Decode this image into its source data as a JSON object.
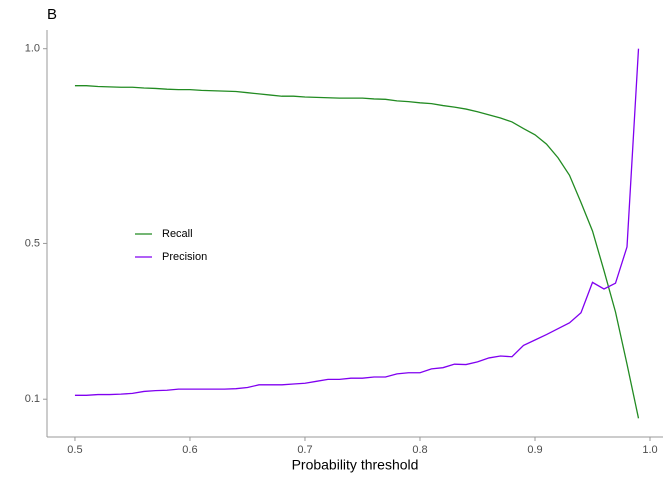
{
  "chart_data": {
    "type": "line",
    "title": "B",
    "xlabel": "Probability threshold",
    "x": [
      0.5,
      0.51,
      0.52,
      0.53,
      0.54,
      0.55,
      0.56,
      0.57,
      0.58,
      0.59,
      0.6,
      0.61,
      0.62,
      0.63,
      0.64,
      0.65,
      0.66,
      0.67,
      0.68,
      0.69,
      0.7,
      0.71,
      0.72,
      0.73,
      0.74,
      0.75,
      0.76,
      0.77,
      0.78,
      0.79,
      0.8,
      0.81,
      0.82,
      0.83,
      0.84,
      0.85,
      0.86,
      0.87,
      0.88,
      0.89,
      0.9,
      0.91,
      0.92,
      0.93,
      0.94,
      0.95,
      0.96,
      0.97,
      0.98,
      0.99
    ],
    "series": [
      {
        "name": "Recall",
        "color": "#228b22",
        "values": [
          0.905,
          0.905,
          0.903,
          0.902,
          0.901,
          0.901,
          0.899,
          0.898,
          0.896,
          0.895,
          0.895,
          0.893,
          0.892,
          0.891,
          0.89,
          0.887,
          0.884,
          0.881,
          0.878,
          0.878,
          0.876,
          0.875,
          0.874,
          0.873,
          0.873,
          0.873,
          0.871,
          0.87,
          0.866,
          0.864,
          0.861,
          0.859,
          0.854,
          0.85,
          0.845,
          0.838,
          0.83,
          0.822,
          0.812,
          0.795,
          0.779,
          0.755,
          0.72,
          0.675,
          0.605,
          0.532,
          0.43,
          0.324,
          0.19,
          0.051
        ]
      },
      {
        "name": "Precision",
        "color": "#8000f0",
        "values": [
          0.11,
          0.11,
          0.112,
          0.112,
          0.113,
          0.115,
          0.12,
          0.122,
          0.123,
          0.126,
          0.126,
          0.126,
          0.126,
          0.126,
          0.127,
          0.13,
          0.137,
          0.137,
          0.137,
          0.139,
          0.141,
          0.146,
          0.151,
          0.151,
          0.154,
          0.154,
          0.157,
          0.157,
          0.165,
          0.168,
          0.168,
          0.178,
          0.181,
          0.19,
          0.189,
          0.196,
          0.206,
          0.211,
          0.209,
          0.238,
          0.252,
          0.266,
          0.281,
          0.296,
          0.322,
          0.4,
          0.383,
          0.398,
          0.491,
          1.0
        ]
      }
    ],
    "xlim": [
      0.4757,
      1.0113
    ],
    "xticks": [
      0.5,
      0.6,
      0.7,
      0.8,
      0.9,
      {
        "value": 1,
        "label": "1.0"
      }
    ],
    "ylim": [
      0.003,
      1.048
    ],
    "yticks": [
      {
        "value": 1,
        "label": "1.0"
      },
      0.5,
      0.1
    ],
    "grid": false,
    "legend": "left"
  }
}
